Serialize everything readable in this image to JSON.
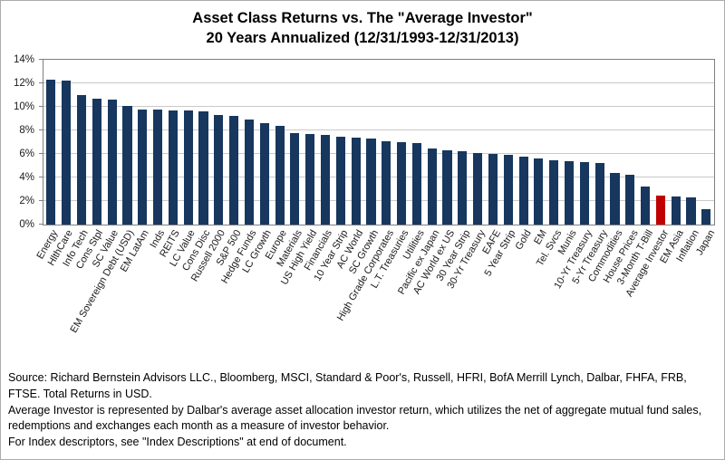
{
  "chart_data": {
    "type": "bar",
    "title": "Asset Class Returns vs. The \"Average Investor\"",
    "subtitle": "20 Years Annualized (12/31/1993-12/31/2013)",
    "xlabel": "",
    "ylabel": "",
    "ylim": [
      0,
      14
    ],
    "yticks": [
      "0%",
      "2%",
      "4%",
      "6%",
      "8%",
      "10%",
      "12%",
      "14%"
    ],
    "grid": "horizontal",
    "legend": "none",
    "bar_color": "#17375E",
    "highlight_color": "#C00000",
    "highlight_category": "Average Investor",
    "categories": [
      "Energy",
      "HlthCare",
      "Info Tech",
      "Cons Stpl",
      "SC Value",
      "EM Sovereign Debt (USD)",
      "EM LatAm",
      "Inds",
      "REITS",
      "LC Value",
      "Cons Disc",
      "Russell 2000",
      "S&P 500",
      "Hedge Funds",
      "LC Growth",
      "Europe",
      "Materials",
      "US High Yield",
      "Financials",
      "10 Year Strip",
      "AC World",
      "SC Growth",
      "High Grade Corporates",
      "L.T. Treasuries",
      "Utilities",
      "Pacific ex Japan",
      "AC World ex US",
      "30 Year Strip",
      "30-Yr Treasury",
      "EAFE",
      "5 Year Strip",
      "Gold",
      "EM",
      "Tel. Svcs",
      "Munis",
      "10-Yr Treasury",
      "5-Yr Treasury",
      "Commodities",
      "House Prices",
      "3-Month T-Bill",
      "Average Investor",
      "EM Asia",
      "Inflation",
      "Japan"
    ],
    "values": [
      12.3,
      12.2,
      11.0,
      10.7,
      10.6,
      10.1,
      9.8,
      9.8,
      9.7,
      9.7,
      9.6,
      9.3,
      9.2,
      8.9,
      8.6,
      8.4,
      7.8,
      7.7,
      7.6,
      7.5,
      7.4,
      7.3,
      7.1,
      7.0,
      6.9,
      6.5,
      6.3,
      6.2,
      6.1,
      6.0,
      5.9,
      5.8,
      5.6,
      5.5,
      5.4,
      5.3,
      5.2,
      4.4,
      4.2,
      3.2,
      2.5,
      2.4,
      2.3,
      1.3
    ]
  },
  "footer": {
    "lines": [
      "Source: Richard Bernstein Advisors LLC., Bloomberg, MSCI, Standard & Poor's, Russell, HFRI, BofA Merrill Lynch, Dalbar, FHFA, FRB, FTSE.  Total Returns in USD.",
      "Average Investor is represented by Dalbar's average asset allocation investor return, which utilizes the net of aggregate mutual fund sales, redemptions and exchanges each month as a measure of investor behavior.",
      "For Index descriptors, see \"Index Descriptions\" at end of document."
    ]
  }
}
